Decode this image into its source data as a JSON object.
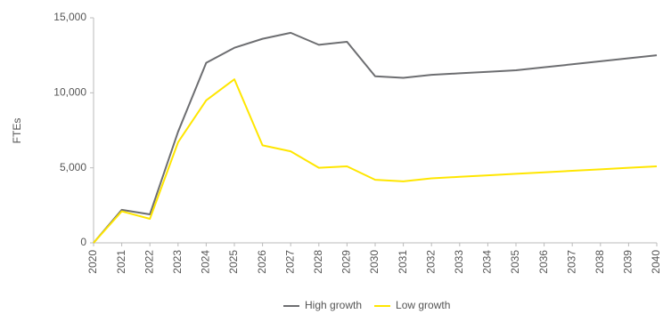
{
  "chart_data": {
    "type": "line",
    "y_label": "FTEs",
    "x": [
      2020,
      2021,
      2022,
      2023,
      2024,
      2025,
      2026,
      2027,
      2028,
      2029,
      2030,
      2031,
      2032,
      2033,
      2034,
      2035,
      2036,
      2037,
      2038,
      2039,
      2040
    ],
    "xlim": [
      2020,
      2040
    ],
    "xticks": [
      2020,
      2021,
      2022,
      2023,
      2024,
      2025,
      2026,
      2027,
      2028,
      2029,
      2030,
      2031,
      2032,
      2033,
      2034,
      2035,
      2036,
      2037,
      2038,
      2039,
      2040
    ],
    "ylim": [
      0,
      15000
    ],
    "yticks": [
      0,
      {
        "value": 5000,
        "label": "5,000"
      },
      {
        "value": 10000,
        "label": "10,000"
      },
      {
        "value": 15000,
        "label": "15,000"
      }
    ],
    "grid": false,
    "legend": "bottom",
    "series": [
      {
        "name": "High growth",
        "color": "#6d6e71",
        "values": [
          0,
          2200,
          1900,
          7400,
          12000,
          13000,
          13600,
          14000,
          13200,
          13400,
          11100,
          11000,
          11200,
          11300,
          11400,
          11500,
          11700,
          11900,
          12100,
          12300,
          12500
        ]
      },
      {
        "name": "Low growth",
        "color": "#ffe600",
        "values": [
          0,
          2100,
          1600,
          6700,
          9500,
          10900,
          6500,
          6100,
          5000,
          5100,
          4200,
          4100,
          4300,
          4400,
          4500,
          4600,
          4700,
          4800,
          4900,
          5000,
          5100
        ]
      }
    ]
  }
}
